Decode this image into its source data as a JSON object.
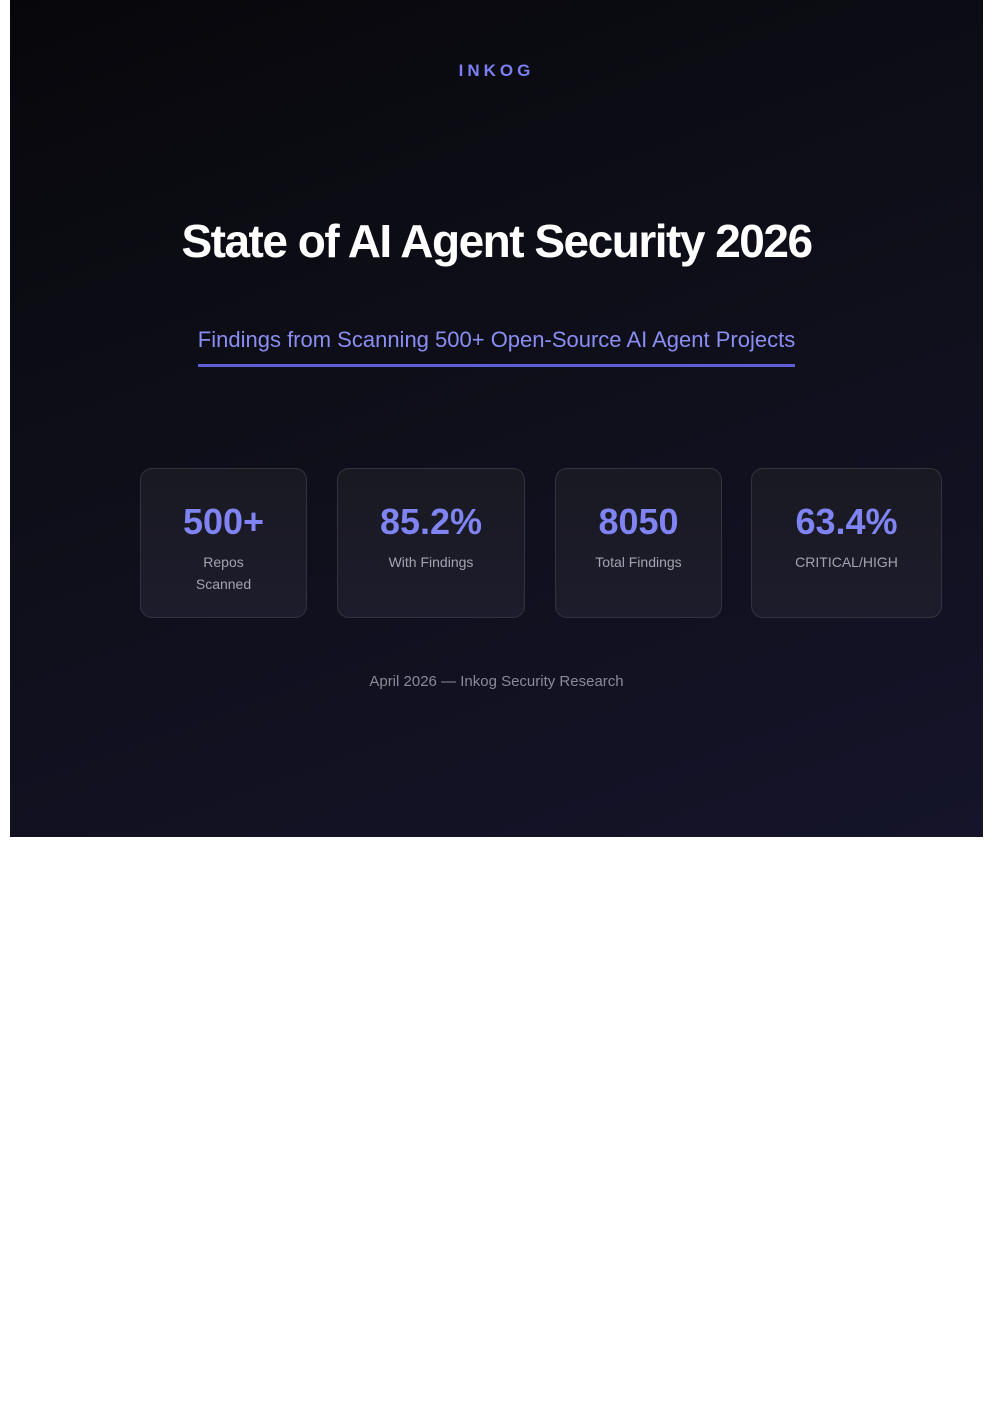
{
  "brand": "INKOG",
  "title": "State of AI Agent Security 2026",
  "subtitle": "Findings from Scanning 500+ Open-Source AI Agent Projects",
  "stats": [
    {
      "value": "500+",
      "label": "Repos Scanned"
    },
    {
      "value": "85.2%",
      "label": "With Findings"
    },
    {
      "value": "8050",
      "label": "Total Findings"
    },
    {
      "value": "63.4%",
      "label": "CRITICAL/HIGH"
    }
  ],
  "footer": "April 2026 — Inkog Security Research",
  "colors": {
    "accent": "#7f84f2",
    "underline": "#5d5fd6",
    "background": "#0e0e18"
  }
}
